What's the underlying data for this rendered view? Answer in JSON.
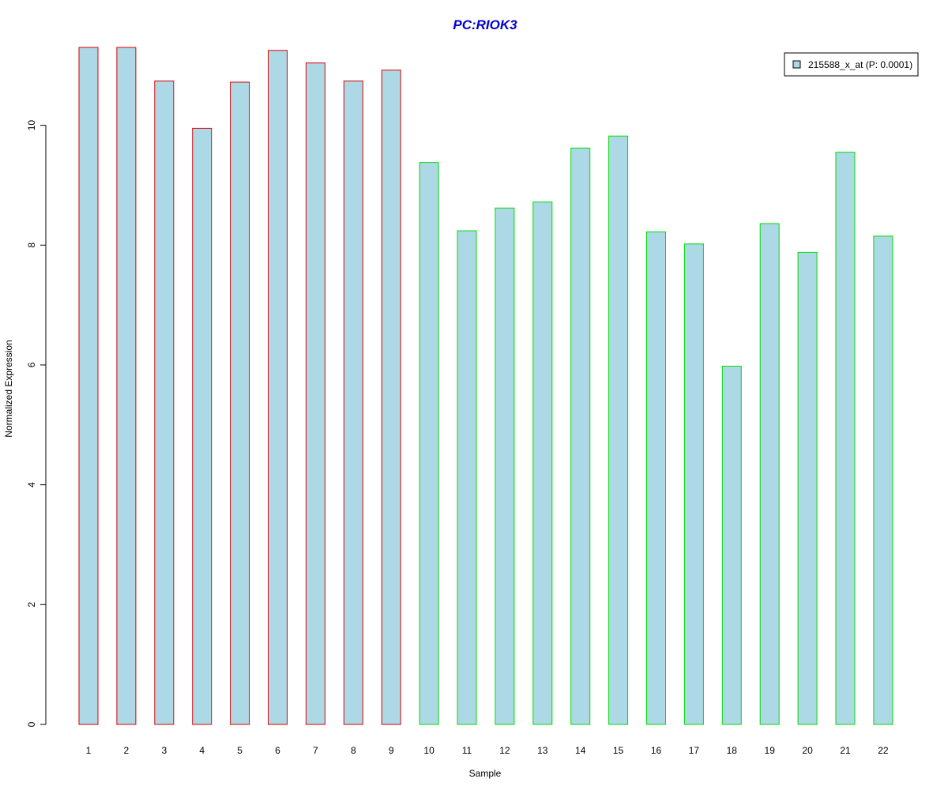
{
  "chart_data": {
    "type": "bar",
    "title": "PC:RIOK3",
    "xlabel": "Sample",
    "ylabel": "Normalized Expression",
    "categories": [
      "1",
      "2",
      "3",
      "4",
      "5",
      "6",
      "7",
      "8",
      "9",
      "10",
      "11",
      "12",
      "13",
      "14",
      "15",
      "16",
      "17",
      "18",
      "19",
      "20",
      "21",
      "22"
    ],
    "series": [
      {
        "name": "215588_x_at (P: 0.0001)",
        "values": [
          11.3,
          11.3,
          10.74,
          9.95,
          10.72,
          11.25,
          11.04,
          10.74,
          10.92,
          9.38,
          8.24,
          8.62,
          8.72,
          9.62,
          9.82,
          8.22,
          8.02,
          5.98,
          8.36,
          7.88,
          9.55,
          8.15
        ]
      }
    ],
    "ylim": [
      0,
      11.3
    ],
    "yticks": [
      0,
      2,
      4,
      6,
      8,
      10
    ],
    "legend_position": "top-right",
    "grid": false,
    "colors": {
      "title": "#0000cc",
      "bar_fill": "#add8e6",
      "group1_border": "#dd0000",
      "group2_border": "#00dd00"
    },
    "group1_count": 9
  }
}
